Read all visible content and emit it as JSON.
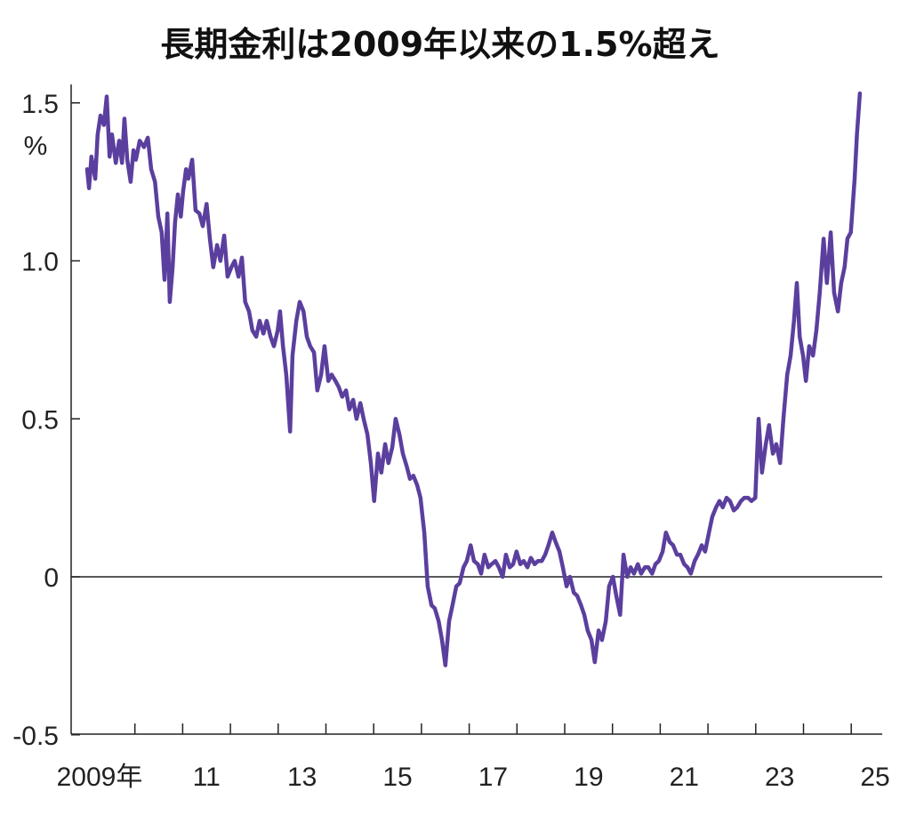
{
  "chart_data": {
    "type": "line",
    "title": "長期金利は2009年以来の1.5%超え",
    "ylabel": "%",
    "xlabel": "",
    "ylim": [
      -0.5,
      1.55
    ],
    "xlim": [
      2009,
      2025.6
    ],
    "y_ticks": [
      {
        "value": 1.5,
        "label": "1.5"
      },
      {
        "value": 1.0,
        "label": "1.0"
      },
      {
        "value": 0.5,
        "label": "0.5"
      },
      {
        "value": 0,
        "label": "0"
      },
      {
        "value": -0.5,
        "label": "-0.5"
      }
    ],
    "x_tick_years": [
      2010,
      2011,
      2012,
      2013,
      2014,
      2015,
      2016,
      2017,
      2018,
      2019,
      2020,
      2021,
      2022,
      2023,
      2024,
      2025
    ],
    "x_labels": [
      {
        "year": 2009,
        "label": "2009年"
      },
      {
        "year": 2011,
        "label": "11"
      },
      {
        "year": 2013,
        "label": "13"
      },
      {
        "year": 2015,
        "label": "15"
      },
      {
        "year": 2017,
        "label": "17"
      },
      {
        "year": 2019,
        "label": "19"
      },
      {
        "year": 2021,
        "label": "21"
      },
      {
        "year": 2023,
        "label": "23"
      },
      {
        "year": 2025,
        "label": "25"
      }
    ],
    "grid": false,
    "reference_line": 0,
    "line_color": "#5b3f9e",
    "series": [
      {
        "name": "長期金利",
        "x": [
          2009.0,
          2009.04,
          2009.09,
          2009.17,
          2009.22,
          2009.28,
          2009.35,
          2009.41,
          2009.47,
          2009.52,
          2009.6,
          2009.67,
          2009.73,
          2009.78,
          2009.84,
          2009.91,
          2009.97,
          2010.02,
          2010.1,
          2010.19,
          2010.27,
          2010.34,
          2010.42,
          2010.49,
          2010.56,
          2010.62,
          2010.68,
          2010.73,
          2010.79,
          2010.84,
          2010.9,
          2010.96,
          2011.01,
          2011.07,
          2011.12,
          2011.2,
          2011.27,
          2011.35,
          2011.42,
          2011.5,
          2011.57,
          2011.64,
          2011.72,
          2011.79,
          2011.87,
          2011.94,
          2012.02,
          2012.09,
          2012.17,
          2012.24,
          2012.31,
          2012.39,
          2012.46,
          2012.54,
          2012.61,
          2012.69,
          2012.76,
          2012.84,
          2012.91,
          2012.99,
          2013.04,
          2013.1,
          2013.17,
          2013.25,
          2013.3,
          2013.38,
          2013.45,
          2013.53,
          2013.6,
          2013.67,
          2013.75,
          2013.82,
          2013.9,
          2013.97,
          2014.05,
          2014.12,
          2014.2,
          2014.27,
          2014.34,
          2014.42,
          2014.49,
          2014.57,
          2014.64,
          2014.72,
          2014.79,
          2014.87,
          2014.94,
          2015.01,
          2015.09,
          2015.16,
          2015.24,
          2015.31,
          2015.39,
          2015.46,
          2015.54,
          2015.61,
          2015.69,
          2015.76,
          2015.83,
          2015.91,
          2015.98,
          2016.06,
          2016.13,
          2016.21,
          2016.28,
          2016.36,
          2016.43,
          2016.5,
          2016.58,
          2016.65,
          2016.73,
          2016.8,
          2016.88,
          2016.95,
          2017.03,
          2017.1,
          2017.18,
          2017.25,
          2017.32,
          2017.4,
          2017.47,
          2017.55,
          2017.62,
          2017.7,
          2017.77,
          2017.85,
          2017.92,
          2017.99,
          2018.07,
          2018.14,
          2018.22,
          2018.29,
          2018.37,
          2018.44,
          2018.52,
          2018.59,
          2018.66,
          2018.74,
          2018.81,
          2018.89,
          2018.96,
          2019.04,
          2019.11,
          2019.19,
          2019.26,
          2019.34,
          2019.41,
          2019.48,
          2019.56,
          2019.63,
          2019.71,
          2019.78,
          2019.86,
          2019.93,
          2020.01,
          2020.08,
          2020.16,
          2020.23,
          2020.31,
          2020.38,
          2020.45,
          2020.53,
          2020.6,
          2020.68,
          2020.75,
          2020.83,
          2020.9,
          2020.97,
          2021.05,
          2021.12,
          2021.2,
          2021.27,
          2021.35,
          2021.42,
          2021.5,
          2021.57,
          2021.64,
          2021.72,
          2021.79,
          2021.87,
          2021.94,
          2022.02,
          2022.09,
          2022.17,
          2022.24,
          2022.31,
          2022.39,
          2022.46,
          2022.54,
          2022.61,
          2022.69,
          2022.76,
          2022.84,
          2022.91,
          2022.99,
          2023.06,
          2023.13,
          2023.21,
          2023.28,
          2023.36,
          2023.43,
          2023.51,
          2023.58,
          2023.66,
          2023.73,
          2023.8,
          2023.86,
          2023.92,
          2023.99,
          2024.05,
          2024.12,
          2024.2,
          2024.27,
          2024.34,
          2024.42,
          2024.49,
          2024.57,
          2024.64,
          2024.72,
          2024.79,
          2024.86,
          2024.92,
          2024.99,
          2025.07,
          2025.12,
          2025.18
        ],
        "y": [
          1.29,
          1.23,
          1.33,
          1.26,
          1.4,
          1.46,
          1.43,
          1.52,
          1.33,
          1.4,
          1.31,
          1.38,
          1.31,
          1.45,
          1.32,
          1.25,
          1.35,
          1.32,
          1.38,
          1.36,
          1.39,
          1.29,
          1.25,
          1.14,
          1.09,
          0.94,
          1.15,
          0.87,
          0.98,
          1.12,
          1.21,
          1.14,
          1.22,
          1.29,
          1.26,
          1.32,
          1.16,
          1.15,
          1.11,
          1.18,
          1.07,
          0.98,
          1.05,
          1.0,
          1.08,
          0.95,
          0.98,
          1.0,
          0.95,
          1.01,
          0.87,
          0.84,
          0.78,
          0.76,
          0.81,
          0.77,
          0.81,
          0.76,
          0.73,
          0.78,
          0.84,
          0.73,
          0.64,
          0.46,
          0.7,
          0.81,
          0.87,
          0.84,
          0.76,
          0.73,
          0.71,
          0.59,
          0.64,
          0.73,
          0.62,
          0.64,
          0.62,
          0.6,
          0.57,
          0.59,
          0.53,
          0.56,
          0.5,
          0.55,
          0.5,
          0.45,
          0.36,
          0.24,
          0.39,
          0.33,
          0.42,
          0.36,
          0.41,
          0.5,
          0.45,
          0.39,
          0.35,
          0.31,
          0.32,
          0.29,
          0.25,
          0.14,
          -0.03,
          -0.09,
          -0.1,
          -0.14,
          -0.2,
          -0.28,
          -0.14,
          -0.09,
          -0.03,
          -0.02,
          0.03,
          0.05,
          0.1,
          0.05,
          0.04,
          0.01,
          0.07,
          0.03,
          0.04,
          0.05,
          0.03,
          0.0,
          0.07,
          0.03,
          0.04,
          0.08,
          0.04,
          0.05,
          0.03,
          0.06,
          0.04,
          0.05,
          0.05,
          0.07,
          0.1,
          0.14,
          0.11,
          0.08,
          0.03,
          -0.03,
          0.0,
          -0.05,
          -0.06,
          -0.09,
          -0.12,
          -0.17,
          -0.2,
          -0.27,
          -0.17,
          -0.2,
          -0.14,
          -0.03,
          0.0,
          -0.06,
          -0.12,
          0.07,
          0.0,
          0.03,
          0.01,
          0.04,
          0.01,
          0.03,
          0.03,
          0.01,
          0.04,
          0.05,
          0.08,
          0.14,
          0.11,
          0.1,
          0.07,
          0.07,
          0.04,
          0.03,
          0.01,
          0.05,
          0.07,
          0.1,
          0.08,
          0.14,
          0.19,
          0.22,
          0.24,
          0.22,
          0.25,
          0.24,
          0.21,
          0.22,
          0.24,
          0.25,
          0.25,
          0.24,
          0.25,
          0.5,
          0.33,
          0.42,
          0.48,
          0.39,
          0.42,
          0.36,
          0.5,
          0.64,
          0.7,
          0.81,
          0.93,
          0.76,
          0.7,
          0.62,
          0.73,
          0.7,
          0.78,
          0.9,
          1.07,
          0.93,
          1.09,
          0.9,
          0.84,
          0.93,
          0.98,
          1.07,
          1.09,
          1.26,
          1.4,
          1.53
        ]
      }
    ]
  }
}
